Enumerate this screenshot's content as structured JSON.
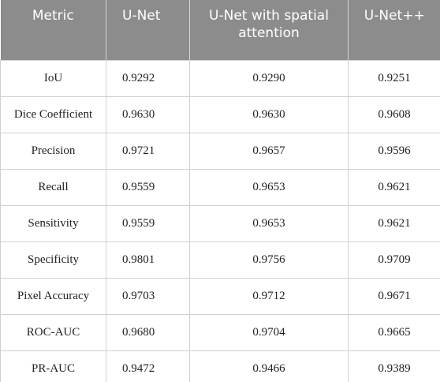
{
  "table": {
    "header": [
      "Metric",
      "U-Net",
      "U-Net with spatial attention",
      "U-Net++"
    ],
    "rows": [
      [
        "IoU",
        "0.9292",
        "0.9290",
        "0.9251"
      ],
      [
        "Dice Coefficient",
        "0.9630",
        "0.9630",
        "0.9608"
      ],
      [
        "Precision",
        "0.9721",
        "0.9657",
        "0.9596"
      ],
      [
        "Recall",
        "0.9559",
        "0.9653",
        "0.9621"
      ],
      [
        "Sensitivity",
        "0.9559",
        "0.9653",
        "0.9621"
      ],
      [
        "Specificity",
        "0.9801",
        "0.9756",
        "0.9709"
      ],
      [
        "Pixel Accuracy",
        "0.9703",
        "0.9712",
        "0.9671"
      ],
      [
        "ROC-AUC",
        "0.9680",
        "0.9704",
        "0.9665"
      ],
      [
        "PR-AUC",
        "0.9472",
        "0.9466",
        "0.9389"
      ]
    ]
  }
}
